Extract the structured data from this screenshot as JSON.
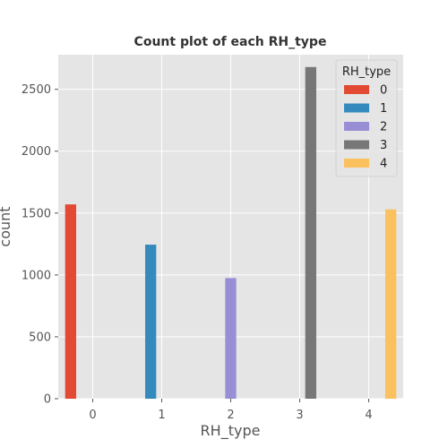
{
  "chart_data": {
    "type": "bar",
    "title": "Count plot of each RH_type",
    "xlabel": "RH_type",
    "ylabel": "count",
    "categories": [
      "0",
      "1",
      "2",
      "3",
      "4"
    ],
    "ylim": [
      0,
      2780
    ],
    "yticks": [
      "0",
      "500",
      "1000",
      "1500",
      "2000",
      "2500"
    ],
    "grid": true,
    "legend": {
      "title": "RH_type",
      "placement": "top-right",
      "entries": [
        "0",
        "1",
        "2",
        "3",
        "4"
      ]
    },
    "series": [
      {
        "name": "0",
        "color": "#E24A33",
        "values": [
          1570,
          0,
          0,
          0,
          0
        ]
      },
      {
        "name": "1",
        "color": "#348ABD",
        "values": [
          0,
          1245,
          0,
          0,
          0
        ]
      },
      {
        "name": "2",
        "color": "#988ED5",
        "values": [
          0,
          0,
          975,
          0,
          0
        ]
      },
      {
        "name": "3",
        "color": "#777777",
        "values": [
          0,
          0,
          0,
          2680,
          0
        ]
      },
      {
        "name": "4",
        "color": "#FBC15E",
        "values": [
          0,
          0,
          0,
          0,
          1530
        ]
      }
    ]
  }
}
